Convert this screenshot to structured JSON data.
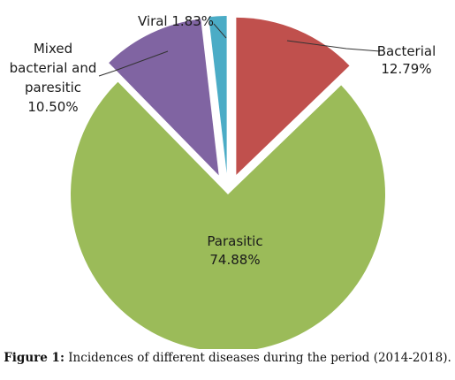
{
  "chart_data": {
    "type": "pie",
    "title": "",
    "slices": [
      {
        "name": "Bacterial",
        "value": 12.79,
        "label": "12.79%",
        "color": "#C0504D"
      },
      {
        "name": "Parasitic",
        "value": 74.88,
        "label": "74.88%",
        "color": "#9BBB59"
      },
      {
        "name": "Mixed bacterial and paresitic",
        "value": 10.5,
        "label": "10.50%",
        "color": "#8064A2"
      },
      {
        "name": "Viral",
        "value": 1.83,
        "label": "1.83%",
        "color": "#4BACC6"
      }
    ],
    "labels": {
      "bacterial_name": "Bacterial",
      "bacterial_value": "12.79%",
      "parasitic_name": "Parasitic",
      "parasitic_value": "74.88%",
      "mixed_line1": "Mixed",
      "mixed_line2": "bacterial and",
      "mixed_line3": "paresitic",
      "mixed_value": "10.50%",
      "viral": "Viral 1.83%"
    },
    "exploded_slices": [
      "Bacterial",
      "Mixed bacterial and paresitic",
      "Viral"
    ],
    "start_angle_deg": 0,
    "direction": "clockwise",
    "legend": "none"
  },
  "caption": {
    "label": "Figure 1:",
    "text": " Incidences of different diseases during the period (2014-2018)."
  }
}
